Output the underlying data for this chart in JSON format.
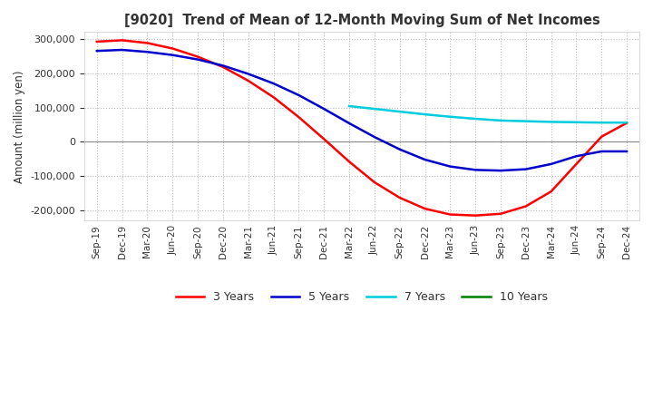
{
  "title": "[9020]  Trend of Mean of 12-Month Moving Sum of Net Incomes",
  "ylabel": "Amount (million yen)",
  "ylim": [
    -230000,
    320000
  ],
  "yticks": [
    -200000,
    -100000,
    0,
    100000,
    200000,
    300000
  ],
  "background_color": "#ffffff",
  "grid_color": "#bbbbbb",
  "line_colors": {
    "3y": "#ff0000",
    "5y": "#0000cc",
    "7y": "#00ccdd",
    "10y": "#008000"
  },
  "line_labels": {
    "3y": "3 Years",
    "5y": "5 Years",
    "7y": "7 Years",
    "10y": "10 Years"
  },
  "xtick_labels": [
    "Sep-19",
    "Dec-19",
    "Mar-20",
    "Jun-20",
    "Sep-20",
    "Dec-20",
    "Mar-21",
    "Jun-21",
    "Sep-21",
    "Dec-21",
    "Mar-22",
    "Jun-22",
    "Sep-22",
    "Dec-22",
    "Mar-23",
    "Jun-23",
    "Sep-23",
    "Dec-23",
    "Mar-24",
    "Jun-24",
    "Sep-24",
    "Dec-24"
  ],
  "series_3y": [
    292000,
    296000,
    288000,
    272000,
    248000,
    218000,
    178000,
    130000,
    72000,
    8000,
    -58000,
    -118000,
    -163000,
    -195000,
    -212000,
    -215000,
    -210000,
    -188000,
    -145000,
    -65000,
    15000,
    55000
  ],
  "series_5y": [
    265000,
    268000,
    262000,
    253000,
    240000,
    222000,
    198000,
    170000,
    136000,
    96000,
    54000,
    14000,
    -22000,
    -52000,
    -72000,
    -82000,
    -84000,
    -80000,
    -65000,
    -42000,
    -28000,
    -28000
  ],
  "series_7y": [
    null,
    null,
    null,
    null,
    null,
    null,
    null,
    null,
    null,
    null,
    104000,
    96000,
    88000,
    80000,
    73000,
    67000,
    62000,
    60000,
    58000,
    57000,
    56000,
    56000
  ],
  "series_10y": [
    null,
    null,
    null,
    null,
    null,
    null,
    null,
    null,
    null,
    null,
    null,
    null,
    null,
    null,
    null,
    null,
    null,
    null,
    null,
    null,
    null,
    null
  ]
}
